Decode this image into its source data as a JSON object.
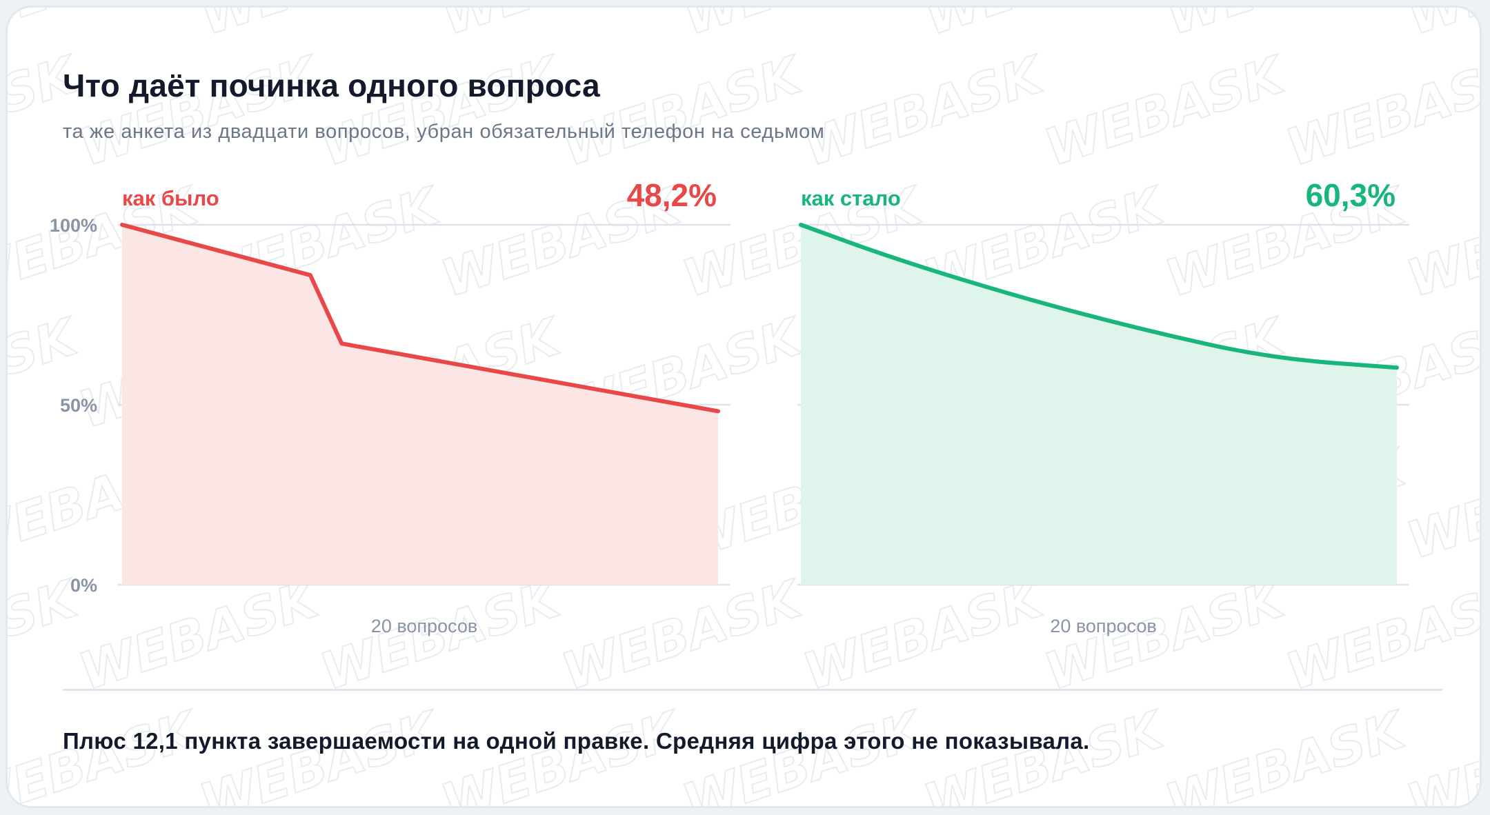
{
  "header": {
    "title": "Что даёт починка одного вопроса",
    "subtitle": "та же анкета из двадцати вопросов, убран обязательный телефон на седьмом"
  },
  "watermark": {
    "text": "WEBASK"
  },
  "colors": {
    "before": "#e84848",
    "before_fill": "#fbe5e5",
    "after": "#18b67b",
    "after_fill": "#dff5ec",
    "grid": "#dde2ec",
    "axis_text": "#8a94a6"
  },
  "chart_data": [
    {
      "type": "area",
      "panel_label": "как было",
      "headline_value": "48,2%",
      "xlabel": "20 вопросов",
      "ylabel": "",
      "y_ticks": [
        "100%",
        "50%",
        "0%"
      ],
      "ylim": [
        0,
        100
      ],
      "xlim": [
        1,
        20
      ],
      "grid": true,
      "x": [
        1,
        7,
        8,
        20
      ],
      "y": [
        100,
        86,
        67,
        48.2
      ]
    },
    {
      "type": "area",
      "panel_label": "как стало",
      "headline_value": "60,3%",
      "xlabel": "20 вопросов",
      "ylabel": "",
      "ylim": [
        0,
        100
      ],
      "xlim": [
        1,
        20
      ],
      "grid": true,
      "x": [
        1,
        4,
        8,
        12,
        16,
        20
      ],
      "y": [
        100,
        90.5,
        79.8,
        70.6,
        62.9,
        60.3
      ]
    }
  ],
  "footer": {
    "note": "Плюс 12,1 пункта завершаемости на одной правке. Средняя цифра этого не показывала."
  }
}
